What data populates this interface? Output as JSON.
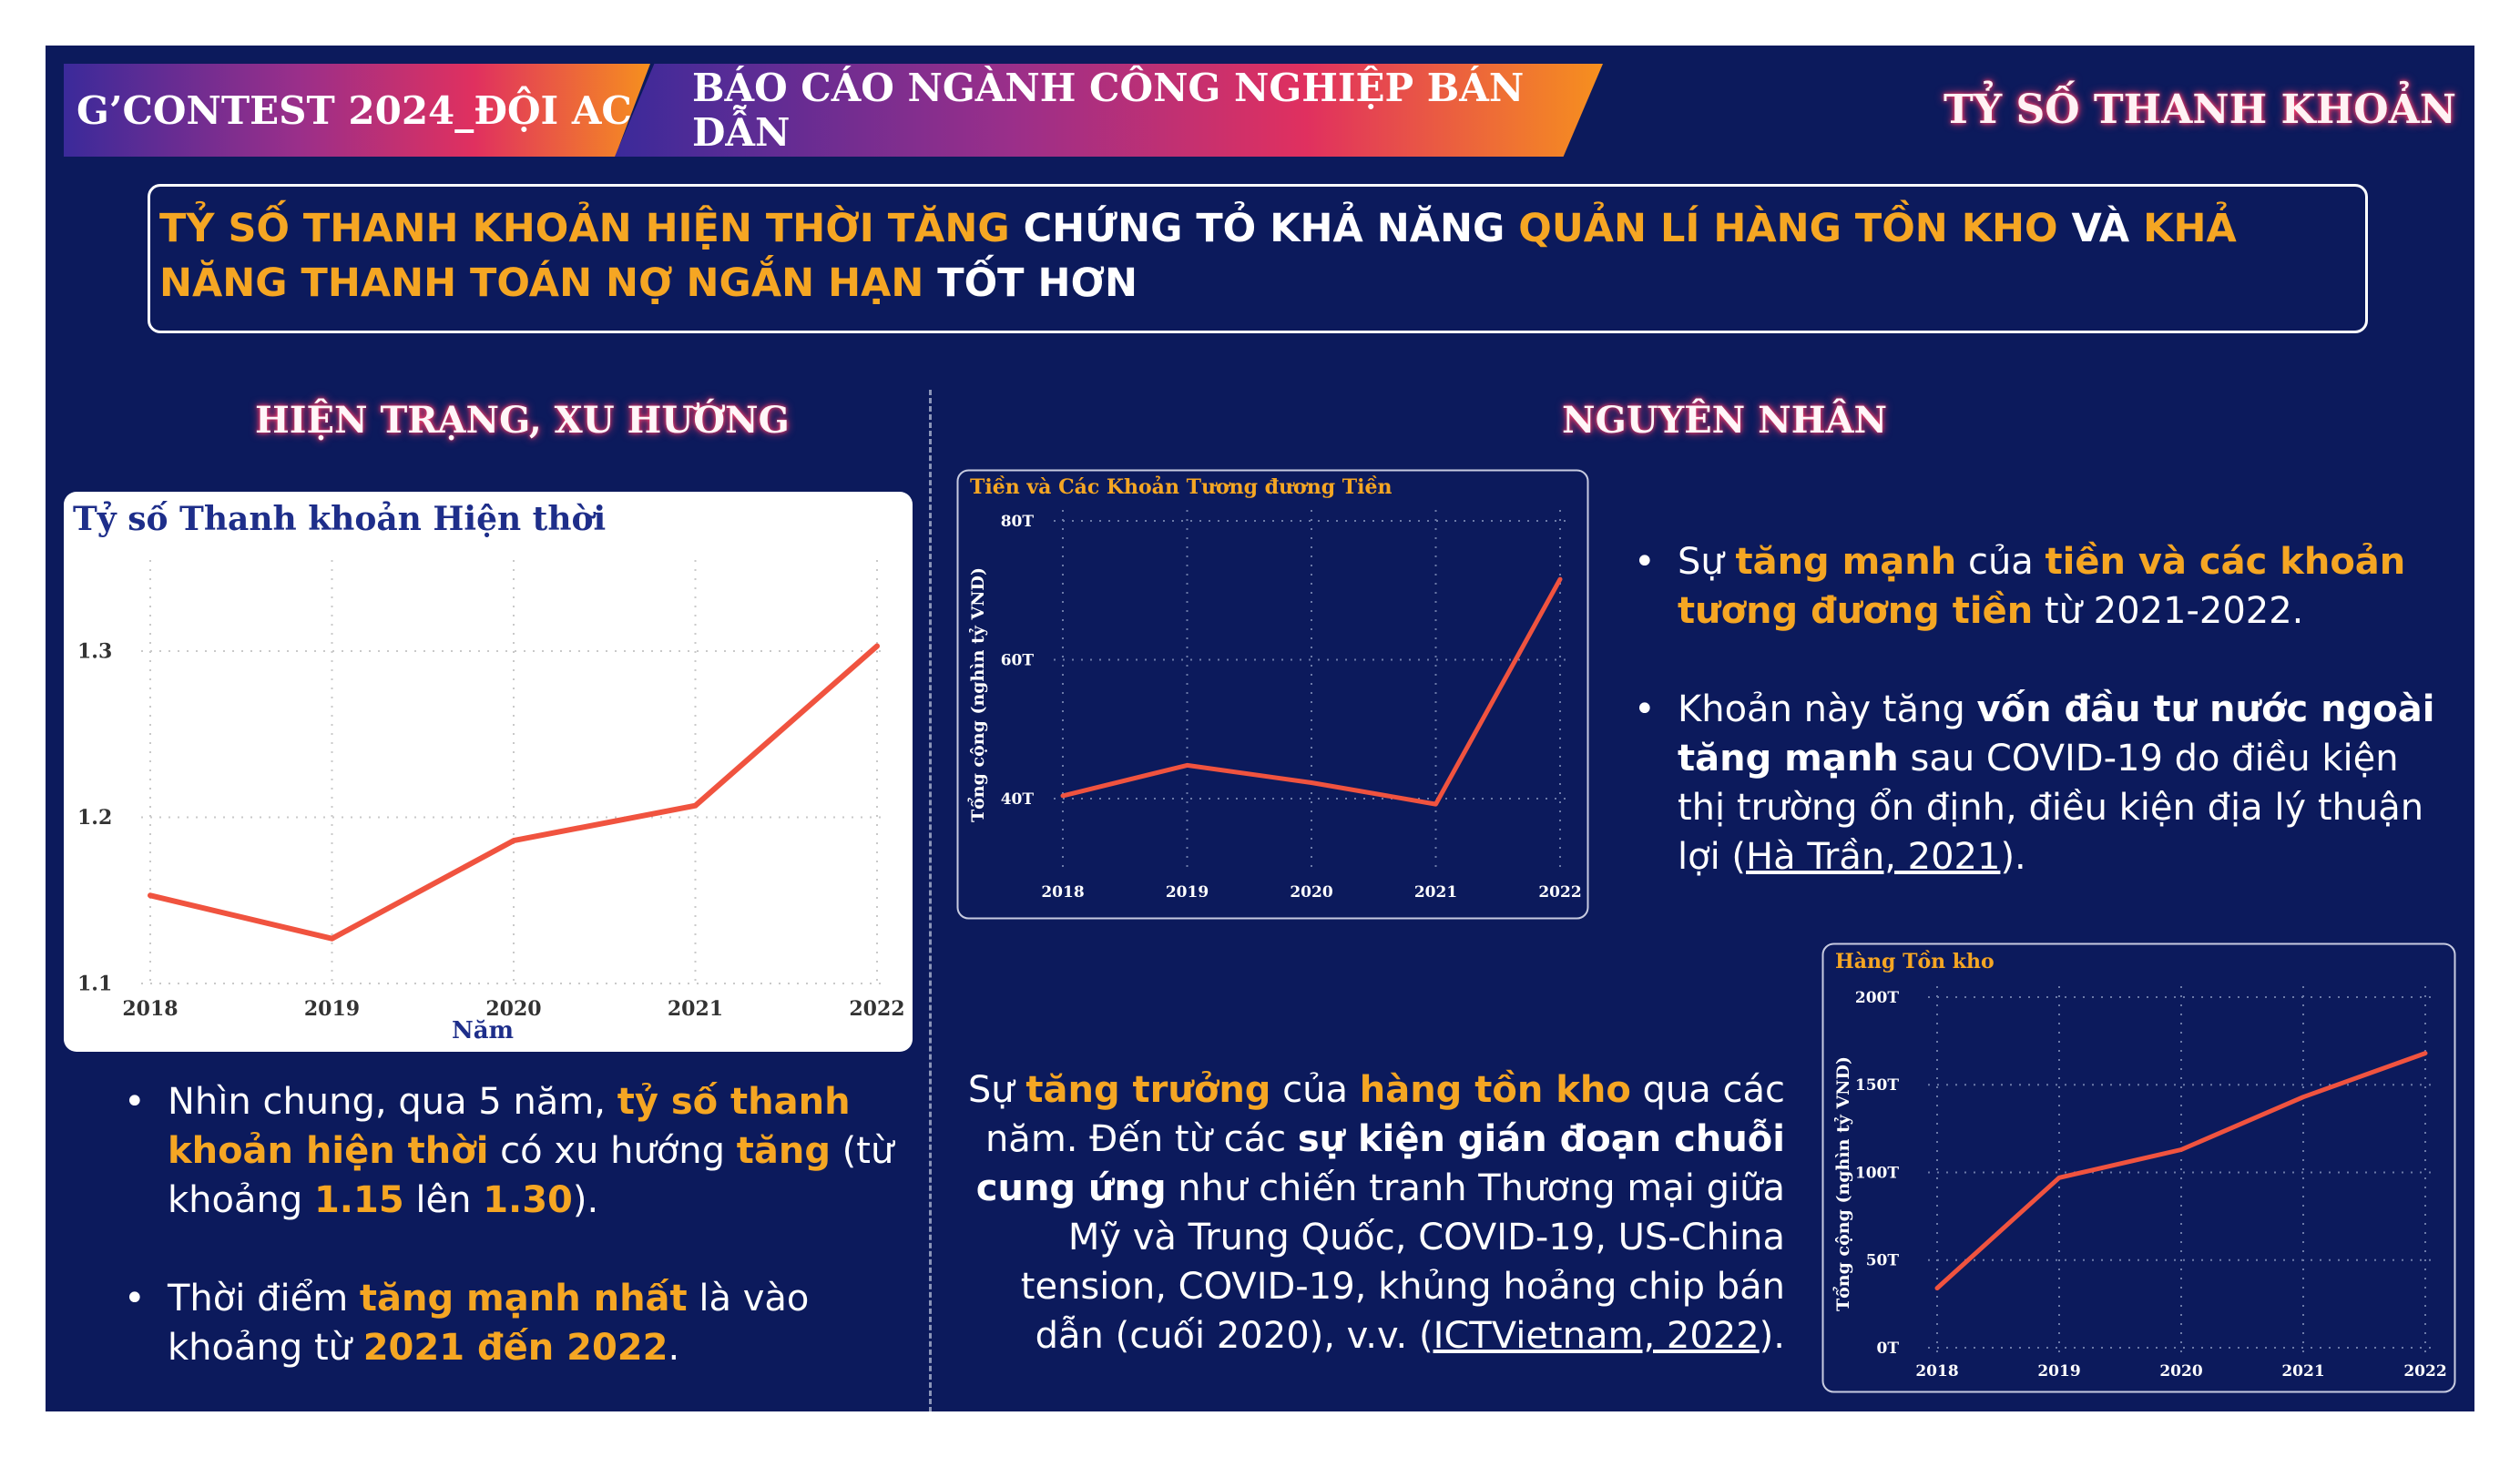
{
  "header": {
    "badge_left": "G’CONTEST 2024_ĐỘI AC",
    "badge_center": "BÁO CÁO NGÀNH CÔNG NGHIỆP BÁN DẪN",
    "section": "TỶ SỐ THANH KHOẢN"
  },
  "headline": {
    "p1": "TỶ SỐ THANH KHOẢN HIỆN THỜI TĂNG",
    "p2": " CHỨNG TỎ KHẢ NĂNG ",
    "p3": "QUẢN LÍ HÀNG TỒN KHO",
    "p4": " VÀ ",
    "p5": "KHẢ NĂNG THANH TOÁN NỢ NGẮN HẠN",
    "p6": " TỐT HƠN"
  },
  "left_title": "HIỆN TRẠNG, XU HƯỚNG",
  "right_title": "NGUYÊN NHÂN",
  "colors": {
    "background": "#0c1a5c",
    "accent": "#f5a623",
    "line": "#f0533f",
    "glow": "#ff3d6a"
  },
  "chart_data": [
    {
      "type": "line",
      "title": "Tỷ số Thanh khoản Hiện thời",
      "xlabel": "Năm",
      "ylabel": "",
      "x": [
        "2018",
        "2019",
        "2020",
        "2021",
        "2022"
      ],
      "y_ticks": [
        "1.1",
        "1.2",
        "1.3"
      ],
      "ylim": [
        1.1,
        1.3
      ],
      "series": [
        {
          "values": [
            1.153,
            1.127,
            1.186,
            1.207,
            1.303
          ]
        }
      ],
      "grid": "dotted"
    },
    {
      "type": "line",
      "title": "Tiền và Các Khoản Tương đương Tiền",
      "xlabel": "",
      "ylabel": "Tổng cộng (nghìn tỷ VND)",
      "x": [
        "2018",
        "2019",
        "2020",
        "2021",
        "2022"
      ],
      "y_ticks": [
        "40T",
        "60T",
        "80T"
      ],
      "ylim": [
        40,
        80
      ],
      "series": [
        {
          "values": [
            40.4,
            44.8,
            42.3,
            39.2,
            71.6
          ]
        }
      ],
      "grid": "dotted"
    },
    {
      "type": "line",
      "title": "Hàng Tồn kho",
      "xlabel": "",
      "ylabel": "Tổng cộng (nghìn tỷ VND)",
      "x": [
        "2018",
        "2019",
        "2020",
        "2021",
        "2022"
      ],
      "y_ticks": [
        "0T",
        "50T",
        "100T",
        "150T",
        "200T"
      ],
      "ylim": [
        0,
        200
      ],
      "series": [
        {
          "values": [
            34,
            97,
            113,
            143,
            168
          ]
        }
      ],
      "grid": "dotted"
    }
  ],
  "left_bullets": {
    "b1": {
      "a": "Nhìn chung, qua 5 năm, ",
      "b": "tỷ số thanh khoản hiện thời",
      "c": " có xu hướng ",
      "d": "tăng",
      "e": " (từ khoảng ",
      "f": "1.15",
      "g": " lên ",
      "h": "1.30",
      "i": ")."
    },
    "b2": {
      "a": "Thời điểm ",
      "b": "tăng mạnh nhất",
      "c": " là vào khoảng từ ",
      "d": "2021 đến 2022",
      "e": "."
    }
  },
  "right_bullets": {
    "b1": {
      "a": "Sự ",
      "b": "tăng mạnh",
      "c": " của ",
      "d": "tiền và các khoản tương đương tiền",
      "e": " từ 2021-2022."
    },
    "b2": {
      "a": "Khoản này tăng  ",
      "b": "vốn đầu tư nước ngoài tăng mạnh",
      "c": " sau COVID-19 do điều kiện thị trường ổn định, điều kiện địa lý thuận lợi (",
      "d": "Hà Trần, 2021",
      "e": ")."
    }
  },
  "mid_para": {
    "a": "Sự ",
    "b": "tăng trưởng",
    "c": " của ",
    "d": "hàng tồn kho",
    "e": " qua các năm. Đến từ các ",
    "f": "sự kiện gián đoạn chuỗi cung ứng",
    "g": " như chiến tranh Thương mại giữa Mỹ và Trung Quốc,  COVID-19, US-China tension, COVID-19, khủng hoảng chip bán dẫn (cuối 2020), v.v. (",
    "h": "ICTVietnam, 2022",
    "i": ")."
  }
}
